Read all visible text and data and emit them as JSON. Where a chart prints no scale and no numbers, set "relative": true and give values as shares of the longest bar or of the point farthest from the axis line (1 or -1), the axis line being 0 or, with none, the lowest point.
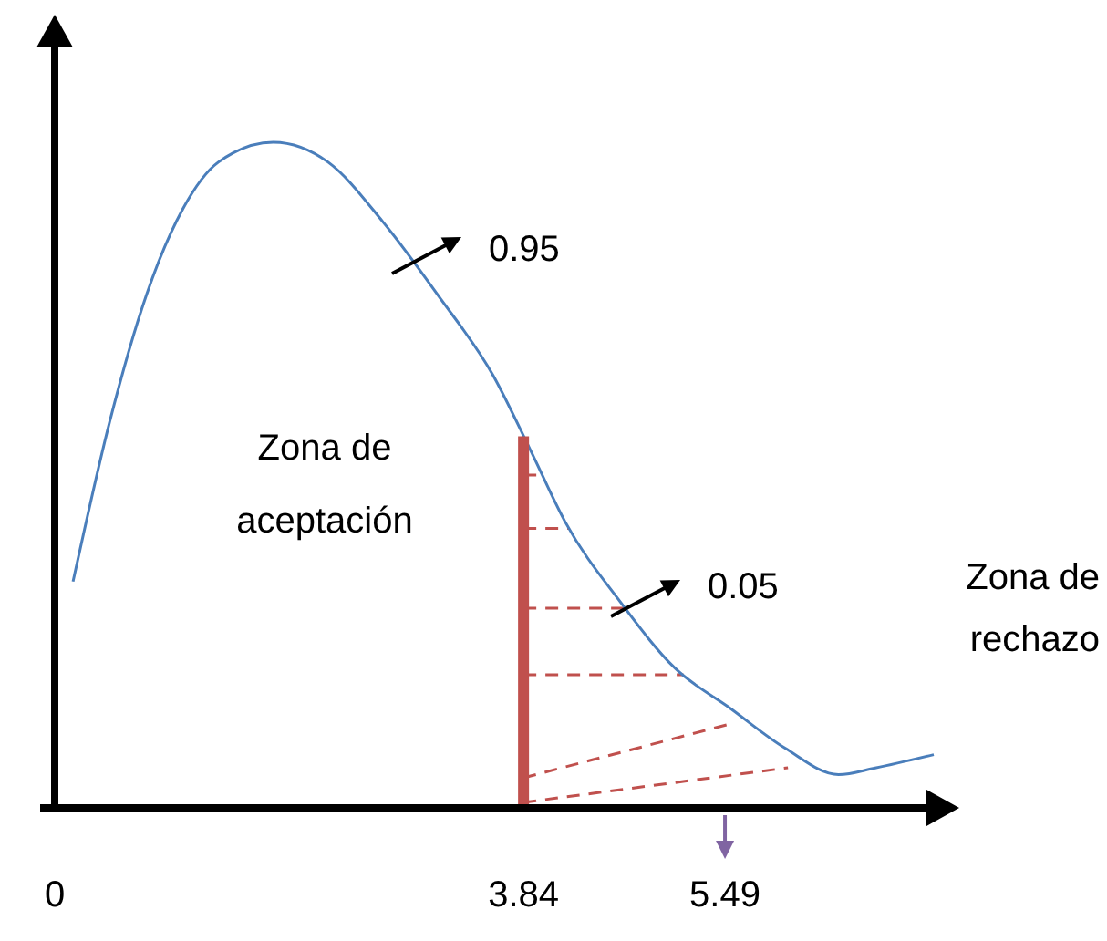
{
  "chart_data": {
    "type": "line",
    "relative": true,
    "xlim": [
      0,
      7.2
    ],
    "xticks": [
      0,
      3.84,
      5.49
    ],
    "x": [
      0.15,
      0.45,
      0.75,
      1.05,
      1.34,
      1.79,
      2.24,
      2.69,
      3.14,
      3.59,
      3.89,
      4.18,
      4.63,
      5.08,
      5.53,
      5.98,
      6.42,
      6.72,
      7.2
    ],
    "series": [
      {
        "color": "#4a7ebb",
        "values": [
          0.34,
          0.58,
          0.77,
          0.9,
          0.97,
          1,
          0.97,
          0.88,
          0.77,
          0.65,
          0.54,
          0.43,
          0.31,
          0.21,
          0.15,
          0.09,
          0.05,
          0.06,
          0.08
        ]
      }
    ],
    "ref_lines": [
      {
        "axis": "x",
        "value": 3.84,
        "color": "#c0504d"
      }
    ],
    "annotations": [
      "Zona de aceptación",
      "0.95",
      "0.05",
      "Zona de rechazo"
    ]
  }
}
